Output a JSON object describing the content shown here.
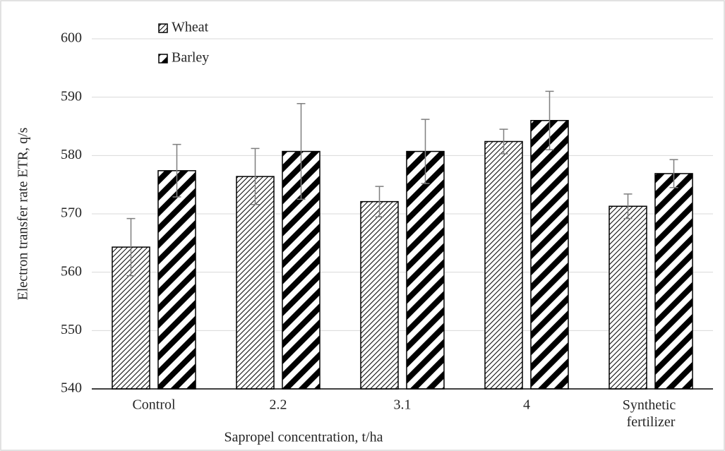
{
  "chart_data": {
    "type": "bar",
    "y_label": "Electron transfer rate ETR, q/s",
    "x_label": "Sapropel concentration, t/ha",
    "categories": [
      "Control",
      "2.2",
      "3.1",
      "4",
      "Synthetic fertilizer"
    ],
    "series": [
      {
        "name": "Wheat",
        "color": "#000000",
        "values": [
          564.3,
          576.4,
          572.1,
          582.4,
          571.3
        ],
        "errors": [
          4.9,
          4.8,
          2.6,
          2.1,
          2.1
        ]
      },
      {
        "name": "Barley",
        "color": "#000000",
        "values": [
          577.4,
          580.7,
          580.7,
          586.0,
          576.9
        ],
        "errors": [
          4.5,
          8.2,
          5.5,
          5.0,
          2.4
        ]
      }
    ],
    "ylim": [
      540,
      600
    ],
    "yticks": [
      540,
      550,
      560,
      570,
      580,
      590,
      600
    ],
    "grid": true,
    "legend": "top-left"
  }
}
